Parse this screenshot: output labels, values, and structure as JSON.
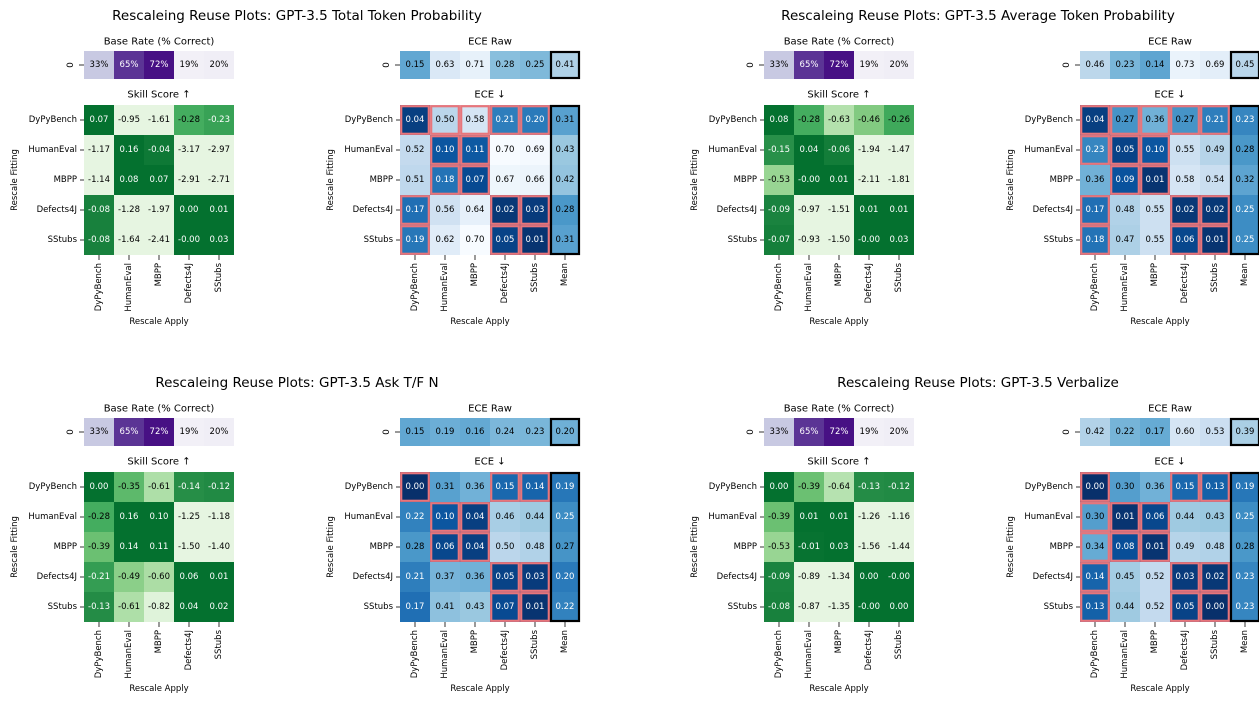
{
  "figure": {
    "heatmap_titles": {
      "base_rate": "Base Rate (% Correct)",
      "skill": "Skill Score ↑",
      "ece_raw": "ECE Raw",
      "ece": "ECE ↓"
    },
    "xlabel": "Rescale Apply",
    "ylabel": "Rescale Fitting",
    "row_labels": [
      "DyPyBench",
      "HumanEval",
      "MBPP",
      "Defects4J",
      "SStubs"
    ],
    "col_labels": [
      "DyPyBench",
      "HumanEval",
      "MBPP",
      "Defects4J",
      "SStubs"
    ],
    "ece_col_labels": [
      "DyPyBench",
      "HumanEval",
      "MBPP",
      "Defects4J",
      "SStubs",
      "Mean"
    ],
    "single_row_label": "0",
    "colors": {
      "purple_scale": "Purples",
      "green_scale": "Greens",
      "blue_scale": "Blues",
      "highlight_border": "#e8757b",
      "mean_border": "#000000"
    }
  },
  "chart_data": [
    {
      "type": "heatmap",
      "title": "Rescaleing Reuse Plots: GPT-3.5 Total Token Probability",
      "base_rate": [
        "33%",
        "65%",
        "72%",
        "19%",
        "20%"
      ],
      "base_rate_values": [
        33,
        65,
        72,
        19,
        20
      ],
      "skill_score": [
        [
          0.07,
          -0.95,
          -1.61,
          -0.28,
          -0.23
        ],
        [
          -1.17,
          0.16,
          -0.04,
          -3.17,
          -2.97
        ],
        [
          -1.14,
          0.08,
          0.07,
          -2.91,
          -2.71
        ],
        [
          -0.08,
          -1.28,
          -1.97,
          0.0,
          0.01
        ],
        [
          -0.08,
          -1.64,
          -2.41,
          -0.0,
          0.03
        ]
      ],
      "ece_raw": [
        0.15,
        0.63,
        0.71,
        0.28,
        0.25,
        0.41
      ],
      "ece": [
        [
          0.04,
          0.5,
          0.58,
          0.21,
          0.2,
          0.31
        ],
        [
          0.52,
          0.1,
          0.11,
          0.7,
          0.69,
          0.43
        ],
        [
          0.51,
          0.18,
          0.07,
          0.67,
          0.66,
          0.42
        ],
        [
          0.17,
          0.56,
          0.64,
          0.02,
          0.03,
          0.28
        ],
        [
          0.19,
          0.62,
          0.7,
          0.05,
          0.01,
          0.31
        ]
      ],
      "highlighted": [
        [
          0,
          0
        ],
        [
          0,
          1
        ],
        [
          0,
          2
        ],
        [
          0,
          3
        ],
        [
          0,
          4
        ],
        [
          1,
          1
        ],
        [
          1,
          2
        ],
        [
          2,
          1
        ],
        [
          2,
          2
        ],
        [
          3,
          0
        ],
        [
          3,
          3
        ],
        [
          3,
          4
        ],
        [
          4,
          0
        ],
        [
          4,
          3
        ],
        [
          4,
          4
        ]
      ]
    },
    {
      "type": "heatmap",
      "title": "Rescaleing Reuse Plots: GPT-3.5 Average Token Probability",
      "base_rate": [
        "33%",
        "65%",
        "72%",
        "19%",
        "20%"
      ],
      "base_rate_values": [
        33,
        65,
        72,
        19,
        20
      ],
      "skill_score": [
        [
          0.08,
          -0.28,
          -0.63,
          -0.46,
          -0.26
        ],
        [
          -0.15,
          0.04,
          -0.06,
          -1.94,
          -1.47
        ],
        [
          -0.53,
          -0.0,
          0.01,
          -2.11,
          -1.81
        ],
        [
          -0.09,
          -0.97,
          -1.51,
          0.01,
          0.01
        ],
        [
          -0.07,
          -0.93,
          -1.5,
          -0.0,
          0.03
        ]
      ],
      "ece_raw": [
        0.46,
        0.23,
        0.14,
        0.73,
        0.69,
        0.45
      ],
      "ece": [
        [
          0.04,
          0.27,
          0.36,
          0.27,
          0.21,
          0.23
        ],
        [
          0.23,
          0.05,
          0.1,
          0.55,
          0.49,
          0.28
        ],
        [
          0.36,
          0.09,
          0.01,
          0.58,
          0.54,
          0.32
        ],
        [
          0.17,
          0.48,
          0.55,
          0.02,
          0.02,
          0.25
        ],
        [
          0.18,
          0.47,
          0.55,
          0.06,
          0.01,
          0.25
        ]
      ],
      "highlighted": [
        [
          0,
          0
        ],
        [
          0,
          1
        ],
        [
          0,
          2
        ],
        [
          0,
          3
        ],
        [
          0,
          4
        ],
        [
          1,
          0
        ],
        [
          1,
          1
        ],
        [
          1,
          2
        ],
        [
          2,
          1
        ],
        [
          2,
          2
        ],
        [
          3,
          0
        ],
        [
          3,
          3
        ],
        [
          3,
          4
        ],
        [
          4,
          0
        ],
        [
          4,
          3
        ],
        [
          4,
          4
        ]
      ]
    },
    {
      "type": "heatmap",
      "title": "Rescaleing Reuse Plots: GPT-3.5 Ask T/F N",
      "base_rate": [
        "33%",
        "65%",
        "72%",
        "19%",
        "20%"
      ],
      "base_rate_values": [
        33,
        65,
        72,
        19,
        20
      ],
      "skill_score": [
        [
          0.0,
          -0.35,
          -0.61,
          -0.14,
          -0.12
        ],
        [
          -0.28,
          0.16,
          0.1,
          -1.25,
          -1.18
        ],
        [
          -0.39,
          0.14,
          0.11,
          -1.5,
          -1.4
        ],
        [
          -0.21,
          -0.49,
          -0.6,
          0.06,
          0.01
        ],
        [
          -0.13,
          -0.61,
          -0.82,
          0.04,
          0.02
        ]
      ],
      "ece_raw": [
        0.15,
        0.19,
        0.16,
        0.24,
        0.23,
        0.2
      ],
      "ece": [
        [
          0.0,
          0.31,
          0.36,
          0.15,
          0.14,
          0.19
        ],
        [
          0.22,
          0.1,
          0.04,
          0.46,
          0.44,
          0.25
        ],
        [
          0.28,
          0.06,
          0.04,
          0.5,
          0.48,
          0.27
        ],
        [
          0.21,
          0.37,
          0.36,
          0.05,
          0.03,
          0.2
        ],
        [
          0.17,
          0.41,
          0.43,
          0.07,
          0.01,
          0.22
        ]
      ],
      "highlighted": [
        [
          0,
          0
        ],
        [
          0,
          3
        ],
        [
          0,
          4
        ],
        [
          1,
          1
        ],
        [
          1,
          2
        ],
        [
          2,
          1
        ],
        [
          2,
          2
        ],
        [
          3,
          3
        ],
        [
          3,
          4
        ],
        [
          4,
          3
        ],
        [
          4,
          4
        ]
      ]
    },
    {
      "type": "heatmap",
      "title": "Rescaleing Reuse Plots: GPT-3.5 Verbalize",
      "base_rate": [
        "33%",
        "65%",
        "72%",
        "19%",
        "20%"
      ],
      "base_rate_values": [
        33,
        65,
        72,
        19,
        20
      ],
      "skill_score": [
        [
          0.0,
          -0.39,
          -0.64,
          -0.13,
          -0.12
        ],
        [
          -0.39,
          0.01,
          0.01,
          -1.26,
          -1.16
        ],
        [
          -0.53,
          -0.01,
          0.03,
          -1.56,
          -1.44
        ],
        [
          -0.09,
          -0.89,
          -1.34,
          0.0,
          -0.0
        ],
        [
          -0.08,
          -0.87,
          -1.35,
          -0.0,
          0.0
        ]
      ],
      "ece_raw": [
        0.42,
        0.22,
        0.17,
        0.6,
        0.53,
        0.39
      ],
      "ece": [
        [
          0.0,
          0.3,
          0.36,
          0.15,
          0.13,
          0.19
        ],
        [
          0.3,
          0.01,
          0.06,
          0.44,
          0.43,
          0.25
        ],
        [
          0.34,
          0.08,
          0.01,
          0.49,
          0.48,
          0.28
        ],
        [
          0.14,
          0.45,
          0.52,
          0.03,
          0.02,
          0.23
        ],
        [
          0.13,
          0.44,
          0.52,
          0.05,
          0.0,
          0.23
        ]
      ],
      "highlighted": [
        [
          0,
          0
        ],
        [
          0,
          3
        ],
        [
          0,
          4
        ],
        [
          1,
          0
        ],
        [
          1,
          1
        ],
        [
          1,
          2
        ],
        [
          2,
          0
        ],
        [
          2,
          1
        ],
        [
          2,
          2
        ],
        [
          3,
          0
        ],
        [
          3,
          3
        ],
        [
          3,
          4
        ],
        [
          4,
          0
        ],
        [
          4,
          3
        ],
        [
          4,
          4
        ]
      ]
    }
  ]
}
